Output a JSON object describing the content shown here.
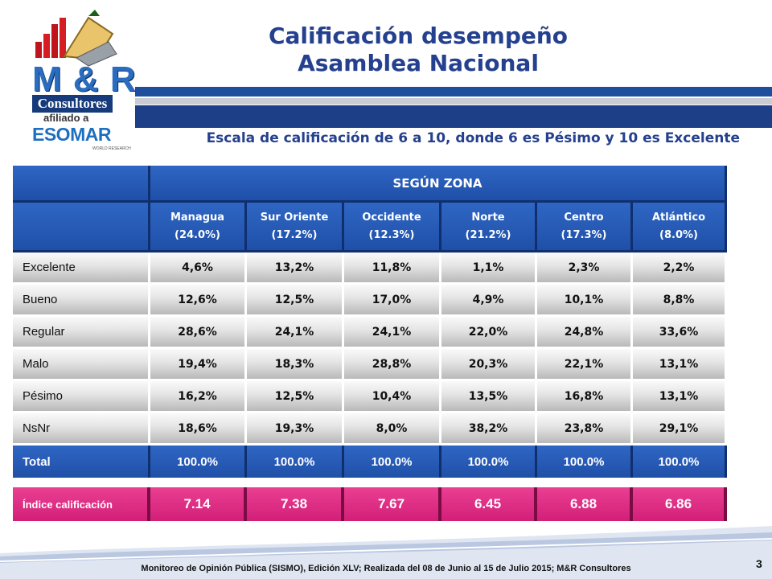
{
  "title": {
    "line1": "Calificación desempeño",
    "line2": "Asamblea Nacional"
  },
  "subtitle": "Escala de calificación de 6 a 10, donde 6 es Pésimo y 10 es Excelente",
  "logo": {
    "brand": "M & R",
    "consultores": "Consultores",
    "afiliado": "afiliado a",
    "esomar": "ESOMAR",
    "world_research": "WORLD RESEARCH"
  },
  "table": {
    "group_header": "SEGÚN ZONA",
    "zones": [
      {
        "name": "Managua",
        "share": "(24.0%)"
      },
      {
        "name": "Sur Oriente",
        "share": "(17.2%)"
      },
      {
        "name": "Occidente",
        "share": "(12.3%)"
      },
      {
        "name": "Norte",
        "share": "(21.2%)"
      },
      {
        "name": "Centro",
        "share": "(17.3%)"
      },
      {
        "name": "Atlántico",
        "share": "(8.0%)"
      }
    ],
    "rows": [
      {
        "label": "Excelente",
        "values": [
          "4,6%",
          "13,2%",
          "11,8%",
          "1,1%",
          "2,3%",
          "2,2%"
        ]
      },
      {
        "label": "Bueno",
        "values": [
          "12,6%",
          "12,5%",
          "17,0%",
          "4,9%",
          "10,1%",
          "8,8%"
        ]
      },
      {
        "label": "Regular",
        "values": [
          "28,6%",
          "24,1%",
          "24,1%",
          "22,0%",
          "24,8%",
          "33,6%"
        ]
      },
      {
        "label": "Malo",
        "values": [
          "19,4%",
          "18,3%",
          "28,8%",
          "20,3%",
          "22,1%",
          "13,1%"
        ]
      },
      {
        "label": "Pésimo",
        "values": [
          "16,2%",
          "12,5%",
          "10,4%",
          "13,5%",
          "16,8%",
          "13,1%"
        ]
      },
      {
        "label": "NsNr",
        "values": [
          "18,6%",
          "19,3%",
          "8,0%",
          "38,2%",
          "23,8%",
          "29,1%"
        ]
      }
    ],
    "total": {
      "label": "Total",
      "values": [
        "100.0%",
        "100.0%",
        "100.0%",
        "100.0%",
        "100.0%",
        "100.0%"
      ]
    }
  },
  "index_row": {
    "label": "Índice calificación",
    "values": [
      "7.14",
      "7.38",
      "7.67",
      "6.45",
      "6.88",
      "6.86"
    ]
  },
  "footer": "Monitoreo de Opinión Pública (SISMO), Edición XLV; Realizada del 08 de Junio al 15 de Julio 2015; M&R Consultores",
  "page_number": "3",
  "colors": {
    "title": "#24408e",
    "header_blue": "#1f50a8",
    "index_pink": "#d21f78",
    "band": "#1d3f88"
  }
}
